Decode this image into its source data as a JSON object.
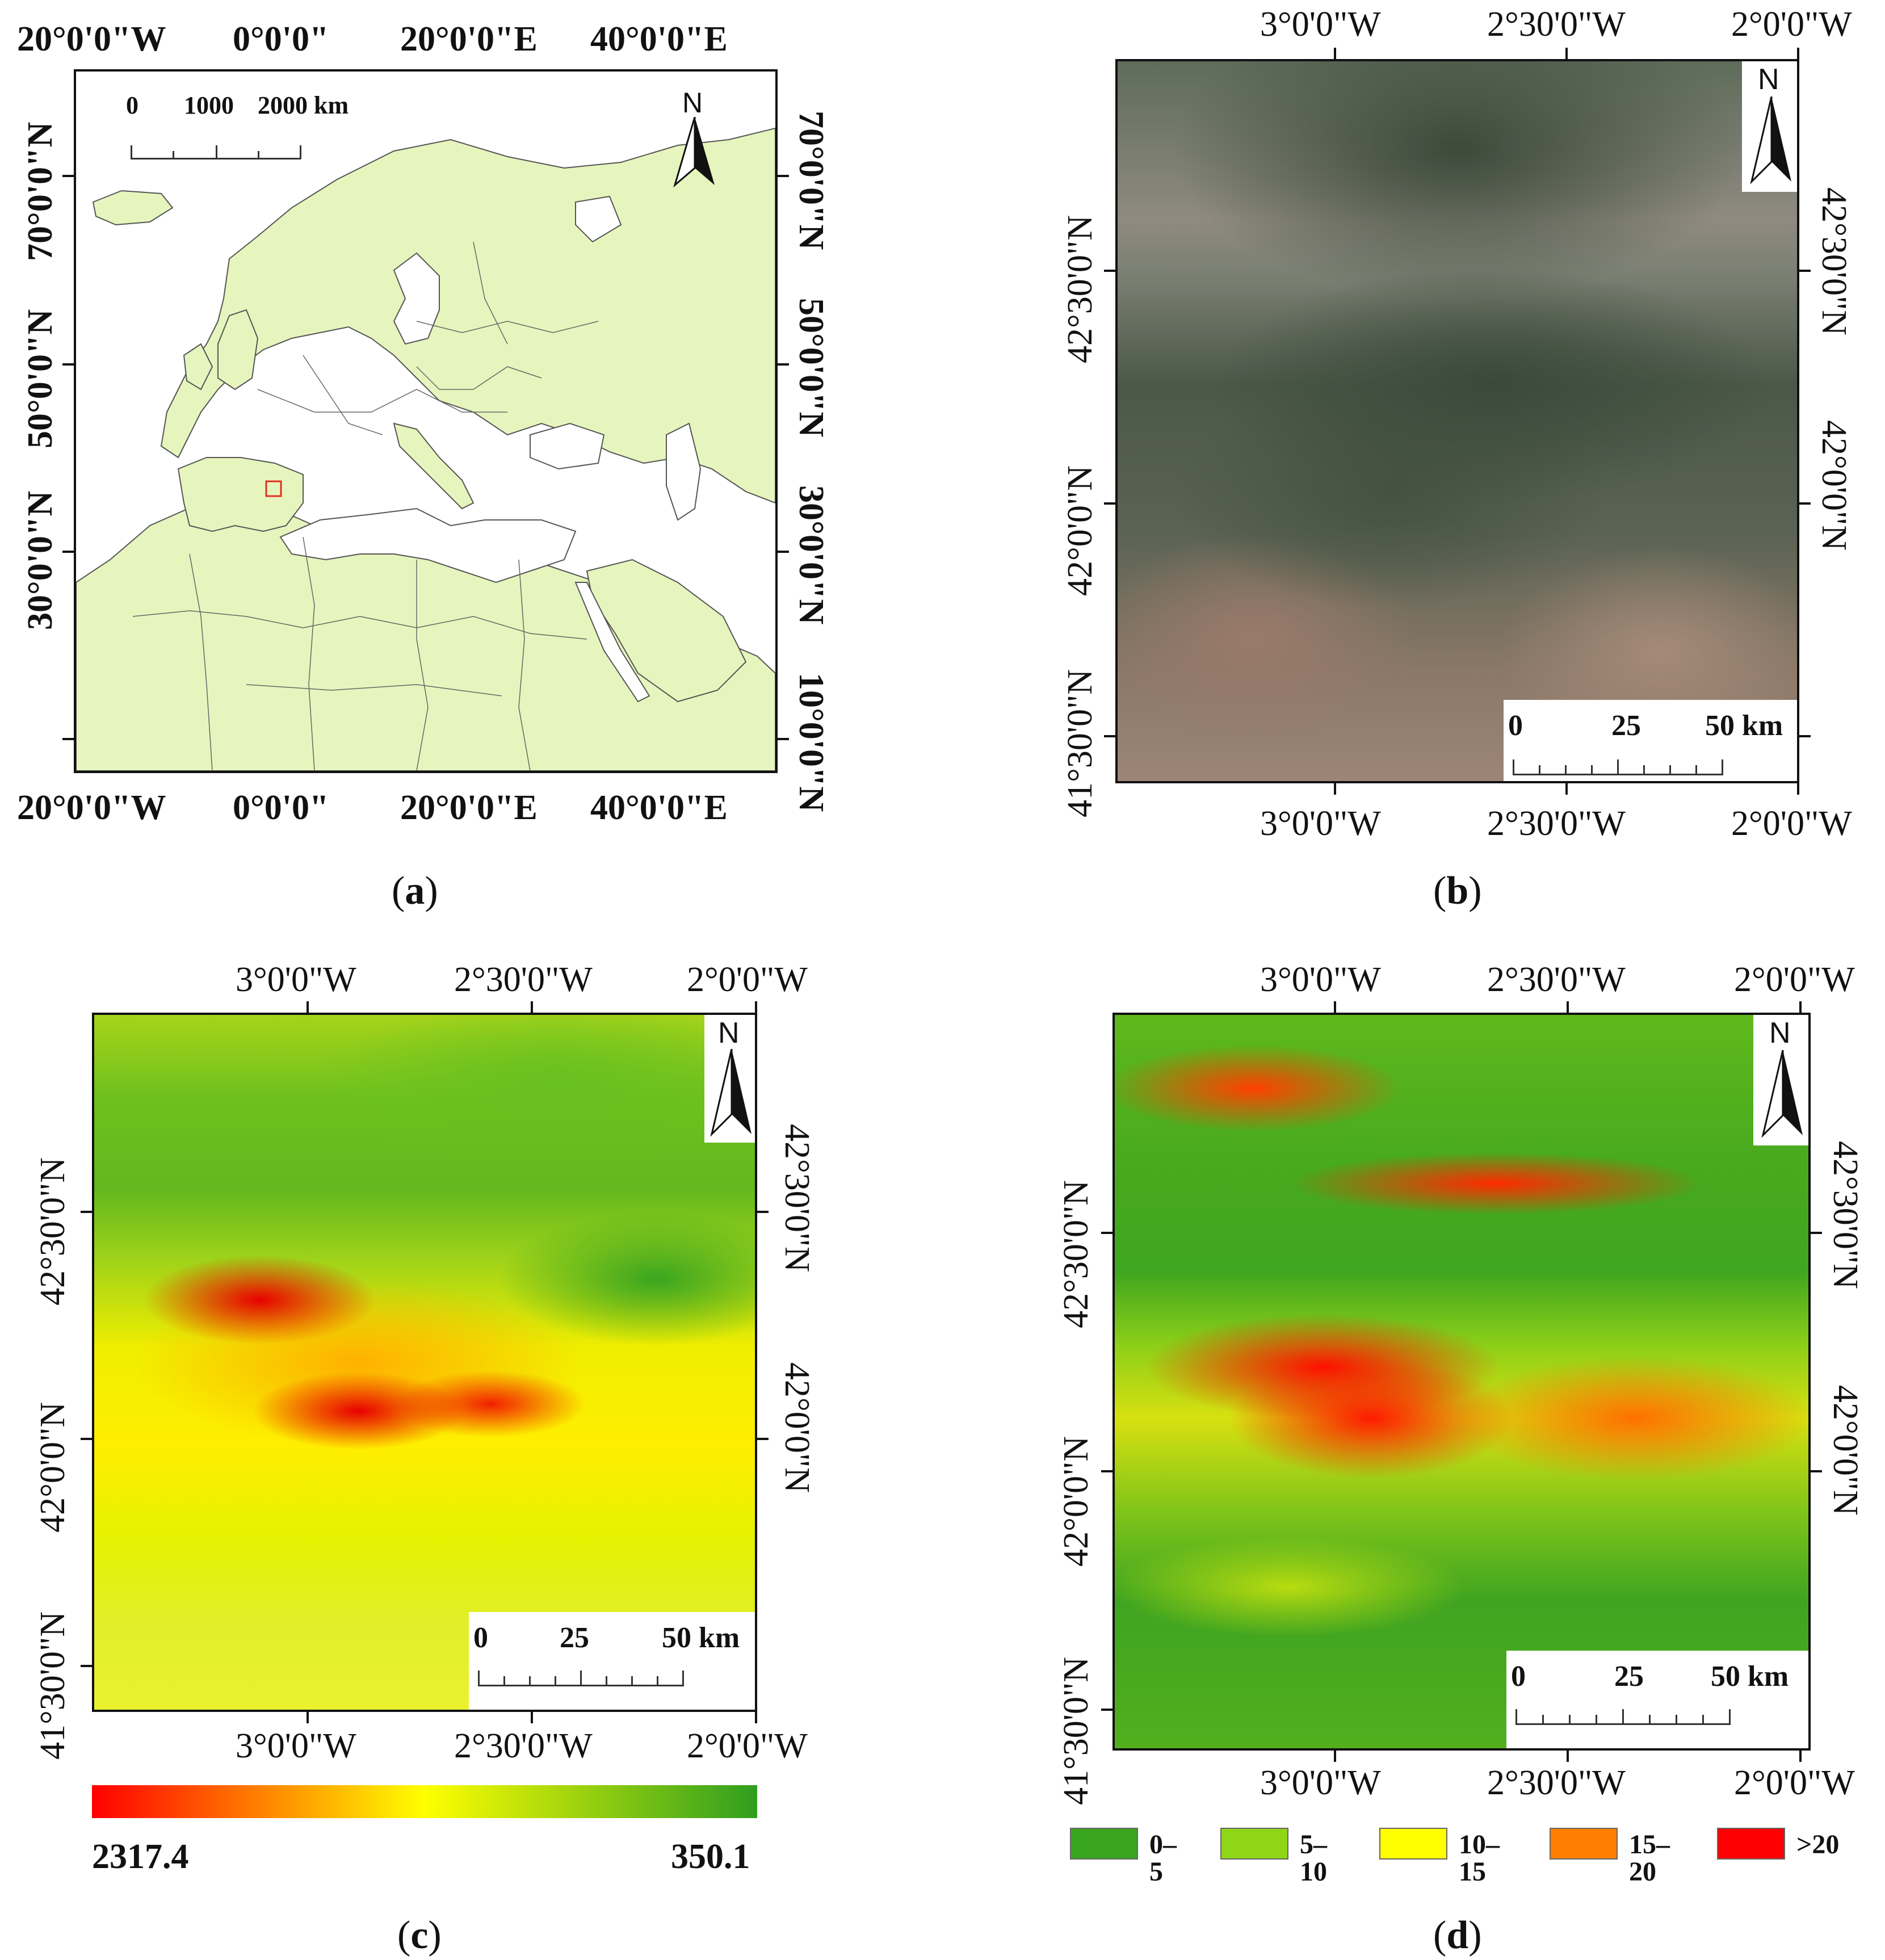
{
  "panel_a": {
    "caption_letter": "a",
    "top_labels": [
      "20°0'0\"W",
      "0°0'0\"",
      "20°0'0\"E",
      "40°0'0\"E"
    ],
    "bottom_labels": [
      "20°0'0\"W",
      "0°0'0\"",
      "20°0'0\"E",
      "40°0'0\"E"
    ],
    "left_labels": [
      "70°0'0\"N",
      "50°0'0\"N",
      "30°0'0\"N"
    ],
    "right_labels": [
      "70°0'0\"N",
      "50°0'0\"N",
      "30°0'0\"N",
      "10°0'0\"N"
    ],
    "scale_labels": [
      "0",
      "1000",
      "2000 km"
    ],
    "north": "N",
    "land_color": "#e6f5bd",
    "sea_color": "#ffffff",
    "marker_color": "#e03020"
  },
  "panel_b": {
    "caption_letter": "b",
    "top_labels": [
      "3°0'0\"W",
      "2°30'0\"W",
      "2°0'0\"W"
    ],
    "bottom_labels": [
      "3°0'0\"W",
      "2°30'0\"W",
      "2°0'0\"W"
    ],
    "left_labels": [
      "42°30'0\"N",
      "42°0'0\"N",
      "41°30'0\"N"
    ],
    "right_labels": [
      "42°30'0\"N",
      "42°0'0\"N"
    ],
    "scale_labels": [
      "0",
      "25",
      "50 km"
    ],
    "north": "N"
  },
  "panel_c": {
    "caption_letter": "c",
    "top_labels": [
      "3°0'0\"W",
      "2°30'0\"W",
      "2°0'0\"W"
    ],
    "bottom_labels": [
      "3°0'0\"W",
      "2°30'0\"W",
      "2°0'0\"W"
    ],
    "left_labels": [
      "42°30'0\"N",
      "42°0'0\"N",
      "41°30'0\"N"
    ],
    "right_labels": [
      "42°30'0\"N",
      "42°0'0\"N"
    ],
    "scale_labels": [
      "0",
      "25",
      "50 km"
    ],
    "north": "N",
    "colorbar_min_label": "2317.4",
    "colorbar_max_label": "350.1",
    "colorbar_colors": [
      "#ff0000",
      "#ffff00",
      "#2e9e1f"
    ]
  },
  "panel_d": {
    "caption_letter": "d",
    "top_labels": [
      "3°0'0\"W",
      "2°30'0\"W",
      "2°0'0\"W"
    ],
    "bottom_labels": [
      "3°0'0\"W",
      "2°30'0\"W",
      "2°0'0\"W"
    ],
    "left_labels": [
      "42°30'0\"N",
      "42°0'0\"N",
      "41°30'0\"N"
    ],
    "right_labels": [
      "42°30'0\"N",
      "42°0'0\"N"
    ],
    "scale_labels": [
      "0",
      "25",
      "50 km"
    ],
    "north": "N",
    "legend": [
      {
        "label": "0–5",
        "color": "#3aa520"
      },
      {
        "label": "5–10",
        "color": "#8fd617"
      },
      {
        "label": "10–15",
        "color": "#ffff00"
      },
      {
        "label": "15–20",
        "color": "#ff8000"
      },
      {
        "label": ">20",
        "color": "#ff0000"
      }
    ]
  }
}
